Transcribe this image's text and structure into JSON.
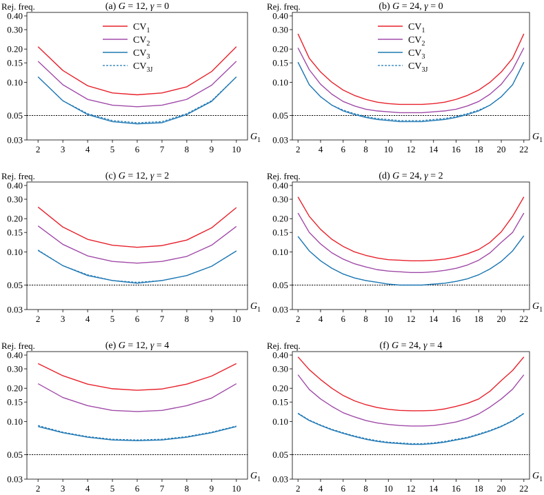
{
  "colors": {
    "cv1": "#e8202a",
    "cv2": "#a04aa8",
    "cv3": "#1f78b4",
    "cv3j": "#1f78b4",
    "ref": "#000000"
  },
  "common": {
    "ylabel": "Rej. freq.",
    "xlabel_base": "G",
    "xlabel_sub": "1",
    "yticks": [
      0.03,
      0.05,
      0.1,
      0.15,
      0.2,
      0.3,
      0.4
    ],
    "ytick_labels": [
      "0.03",
      "0.05",
      "0.10",
      "0.15",
      "0.20",
      "0.30",
      "0.40"
    ],
    "reference_line": 0.05,
    "yscale": "log",
    "ylim": [
      0.03,
      0.43
    ]
  },
  "legend": [
    {
      "key": "cv1",
      "label": "CV",
      "sub": "1",
      "dash": false
    },
    {
      "key": "cv2",
      "label": "CV",
      "sub": "2",
      "dash": false
    },
    {
      "key": "cv3",
      "label": "CV",
      "sub": "3",
      "dash": false
    },
    {
      "key": "cv3j",
      "label": "CV",
      "sub": "3J",
      "dash": true
    }
  ],
  "chart_data": [
    {
      "type": "line",
      "title": "(a) G = 12, γ = 0",
      "title_parts": {
        "pre": "(a) ",
        "G": "G",
        "eq1": " = 12, ",
        "gamma": "γ",
        "eq2": " = 0"
      },
      "x": [
        2,
        3,
        4,
        5,
        6,
        7,
        8,
        9,
        10
      ],
      "xticks": [
        2,
        3,
        4,
        5,
        6,
        7,
        8,
        9,
        10
      ],
      "xlim": [
        1.55,
        10.45
      ],
      "series": [
        {
          "key": "cv1",
          "name": "CV1",
          "values": [
            0.21,
            0.128,
            0.093,
            0.08,
            0.077,
            0.08,
            0.091,
            0.125,
            0.21
          ]
        },
        {
          "key": "cv2",
          "name": "CV2",
          "values": [
            0.155,
            0.095,
            0.07,
            0.062,
            0.06,
            0.062,
            0.07,
            0.094,
            0.155
          ]
        },
        {
          "key": "cv3",
          "name": "CV3",
          "values": [
            0.112,
            0.068,
            0.051,
            0.044,
            0.042,
            0.043,
            0.051,
            0.067,
            0.112
          ]
        },
        {
          "key": "cv3j",
          "name": "CV3J",
          "values": [
            0.112,
            0.068,
            0.052,
            0.045,
            0.043,
            0.044,
            0.052,
            0.068,
            0.112
          ]
        }
      ]
    },
    {
      "type": "line",
      "title": "(b) G = 24, γ = 0",
      "title_parts": {
        "pre": "(b) ",
        "G": "G",
        "eq1": " = 24, ",
        "gamma": "γ",
        "eq2": " = 0"
      },
      "x": [
        2,
        3,
        4,
        5,
        6,
        7,
        8,
        9,
        10,
        11,
        12,
        13,
        14,
        15,
        16,
        17,
        18,
        19,
        20,
        21,
        22
      ],
      "xticks": [
        2,
        4,
        6,
        8,
        10,
        12,
        14,
        16,
        18,
        20,
        22
      ],
      "xlim": [
        1.5,
        22.5
      ],
      "series": [
        {
          "key": "cv1",
          "name": "CV1",
          "values": [
            0.275,
            0.165,
            0.124,
            0.1,
            0.085,
            0.076,
            0.07,
            0.066,
            0.064,
            0.063,
            0.063,
            0.063,
            0.064,
            0.066,
            0.07,
            0.076,
            0.085,
            0.1,
            0.124,
            0.165,
            0.275
          ]
        },
        {
          "key": "cv2",
          "name": "CV2",
          "values": [
            0.205,
            0.13,
            0.096,
            0.078,
            0.067,
            0.061,
            0.057,
            0.055,
            0.054,
            0.053,
            0.053,
            0.053,
            0.054,
            0.055,
            0.057,
            0.061,
            0.067,
            0.078,
            0.096,
            0.13,
            0.205
          ]
        },
        {
          "key": "cv3",
          "name": "CV3",
          "values": [
            0.152,
            0.095,
            0.074,
            0.062,
            0.055,
            0.051,
            0.048,
            0.046,
            0.045,
            0.044,
            0.044,
            0.044,
            0.045,
            0.046,
            0.048,
            0.051,
            0.055,
            0.062,
            0.074,
            0.095,
            0.152
          ]
        },
        {
          "key": "cv3j",
          "name": "CV3J",
          "values": [
            0.152,
            0.095,
            0.074,
            0.062,
            0.056,
            0.052,
            0.049,
            0.047,
            0.046,
            0.045,
            0.045,
            0.045,
            0.046,
            0.047,
            0.049,
            0.052,
            0.056,
            0.062,
            0.074,
            0.095,
            0.152
          ]
        }
      ]
    },
    {
      "type": "line",
      "title": "(c) G = 12, γ = 2",
      "title_parts": {
        "pre": "(c) ",
        "G": "G",
        "eq1": " = 12, ",
        "gamma": "γ",
        "eq2": " = 2"
      },
      "x": [
        2,
        3,
        4,
        5,
        6,
        7,
        8,
        9,
        10
      ],
      "xticks": [
        2,
        3,
        4,
        5,
        6,
        7,
        8,
        9,
        10
      ],
      "xlim": [
        1.55,
        10.45
      ],
      "series": [
        {
          "key": "cv1",
          "name": "CV1",
          "values": [
            0.255,
            0.168,
            0.13,
            0.115,
            0.11,
            0.114,
            0.128,
            0.165,
            0.252
          ]
        },
        {
          "key": "cv2",
          "name": "CV2",
          "values": [
            0.172,
            0.117,
            0.092,
            0.082,
            0.079,
            0.082,
            0.091,
            0.115,
            0.17
          ]
        },
        {
          "key": "cv3",
          "name": "CV3",
          "values": [
            0.103,
            0.075,
            0.061,
            0.055,
            0.052,
            0.055,
            0.061,
            0.074,
            0.102
          ]
        },
        {
          "key": "cv3j",
          "name": "CV3J",
          "values": [
            0.104,
            0.075,
            0.062,
            0.055,
            0.053,
            0.055,
            0.061,
            0.074,
            0.102
          ]
        }
      ]
    },
    {
      "type": "line",
      "title": "(d) G = 24, γ = 2",
      "title_parts": {
        "pre": "(d) ",
        "G": "G",
        "eq1": " = 24, ",
        "gamma": "γ",
        "eq2": " = 2"
      },
      "x": [
        2,
        3,
        4,
        5,
        6,
        7,
        8,
        9,
        10,
        11,
        12,
        13,
        14,
        15,
        16,
        17,
        18,
        19,
        20,
        21,
        22
      ],
      "xticks": [
        2,
        4,
        6,
        8,
        10,
        12,
        14,
        16,
        18,
        20,
        22
      ],
      "xlim": [
        1.5,
        22.5
      ],
      "series": [
        {
          "key": "cv1",
          "name": "CV1",
          "values": [
            0.315,
            0.21,
            0.16,
            0.13,
            0.112,
            0.1,
            0.093,
            0.088,
            0.085,
            0.084,
            0.083,
            0.083,
            0.084,
            0.086,
            0.09,
            0.096,
            0.105,
            0.122,
            0.152,
            0.21,
            0.315
          ]
        },
        {
          "key": "cv2",
          "name": "CV2",
          "values": [
            0.225,
            0.15,
            0.118,
            0.098,
            0.086,
            0.078,
            0.073,
            0.069,
            0.067,
            0.066,
            0.065,
            0.065,
            0.066,
            0.068,
            0.071,
            0.076,
            0.084,
            0.098,
            0.122,
            0.15,
            0.225
          ]
        },
        {
          "key": "cv3",
          "name": "CV3",
          "values": [
            0.138,
            0.102,
            0.083,
            0.071,
            0.063,
            0.058,
            0.055,
            0.053,
            0.051,
            0.05,
            0.05,
            0.05,
            0.051,
            0.052,
            0.054,
            0.057,
            0.062,
            0.07,
            0.082,
            0.102,
            0.14
          ]
        },
        {
          "key": "cv3j",
          "name": "CV3J",
          "values": [
            0.138,
            0.102,
            0.083,
            0.071,
            0.063,
            0.058,
            0.055,
            0.053,
            0.051,
            0.05,
            0.05,
            0.05,
            0.051,
            0.052,
            0.054,
            0.057,
            0.062,
            0.07,
            0.082,
            0.102,
            0.14
          ]
        }
      ]
    },
    {
      "type": "line",
      "title": "(e) G = 12, γ = 4",
      "title_parts": {
        "pre": "(e) ",
        "G": "G",
        "eq1": " = 12, ",
        "gamma": "γ",
        "eq2": " = 4"
      },
      "x": [
        2,
        3,
        4,
        5,
        6,
        7,
        8,
        9,
        10
      ],
      "xticks": [
        2,
        3,
        4,
        5,
        6,
        7,
        8,
        9,
        10
      ],
      "xlim": [
        1.55,
        10.45
      ],
      "series": [
        {
          "key": "cv1",
          "name": "CV1",
          "values": [
            0.335,
            0.26,
            0.218,
            0.198,
            0.192,
            0.197,
            0.218,
            0.258,
            0.335
          ]
        },
        {
          "key": "cv2",
          "name": "CV2",
          "values": [
            0.22,
            0.165,
            0.139,
            0.126,
            0.123,
            0.126,
            0.139,
            0.163,
            0.22
          ]
        },
        {
          "key": "cv3",
          "name": "CV3",
          "values": [
            0.09,
            0.079,
            0.072,
            0.068,
            0.067,
            0.068,
            0.072,
            0.079,
            0.09
          ]
        },
        {
          "key": "cv3j",
          "name": "CV3J",
          "values": [
            0.092,
            0.08,
            0.073,
            0.069,
            0.068,
            0.069,
            0.073,
            0.08,
            0.091
          ]
        }
      ]
    },
    {
      "type": "line",
      "title": "(f) G = 24, γ = 4",
      "title_parts": {
        "pre": "(f) ",
        "G": "G",
        "eq1": " = 24, ",
        "gamma": "γ",
        "eq2": " = 4"
      },
      "x": [
        2,
        3,
        4,
        5,
        6,
        7,
        8,
        9,
        10,
        11,
        12,
        13,
        14,
        15,
        16,
        17,
        18,
        19,
        20,
        21,
        22
      ],
      "xticks": [
        2,
        4,
        6,
        8,
        10,
        12,
        14,
        16,
        18,
        20,
        22
      ],
      "xlim": [
        1.5,
        22.5
      ],
      "series": [
        {
          "key": "cv1",
          "name": "CV1",
          "values": [
            0.385,
            0.295,
            0.24,
            0.2,
            0.172,
            0.154,
            0.142,
            0.134,
            0.129,
            0.126,
            0.125,
            0.125,
            0.126,
            0.13,
            0.137,
            0.146,
            0.16,
            0.188,
            0.235,
            0.29,
            0.385
          ]
        },
        {
          "key": "cv2",
          "name": "CV2",
          "values": [
            0.265,
            0.195,
            0.16,
            0.137,
            0.12,
            0.11,
            0.102,
            0.097,
            0.094,
            0.092,
            0.091,
            0.091,
            0.092,
            0.095,
            0.099,
            0.106,
            0.117,
            0.135,
            0.16,
            0.196,
            0.265
          ]
        },
        {
          "key": "cv3",
          "name": "CV3",
          "values": [
            0.118,
            0.102,
            0.092,
            0.084,
            0.078,
            0.073,
            0.069,
            0.066,
            0.064,
            0.063,
            0.062,
            0.062,
            0.063,
            0.065,
            0.068,
            0.071,
            0.076,
            0.082,
            0.09,
            0.101,
            0.118
          ]
        },
        {
          "key": "cv3j",
          "name": "CV3J",
          "values": [
            0.119,
            0.103,
            0.093,
            0.085,
            0.079,
            0.074,
            0.07,
            0.067,
            0.065,
            0.064,
            0.063,
            0.063,
            0.064,
            0.066,
            0.069,
            0.072,
            0.077,
            0.083,
            0.091,
            0.102,
            0.119
          ]
        }
      ]
    }
  ]
}
